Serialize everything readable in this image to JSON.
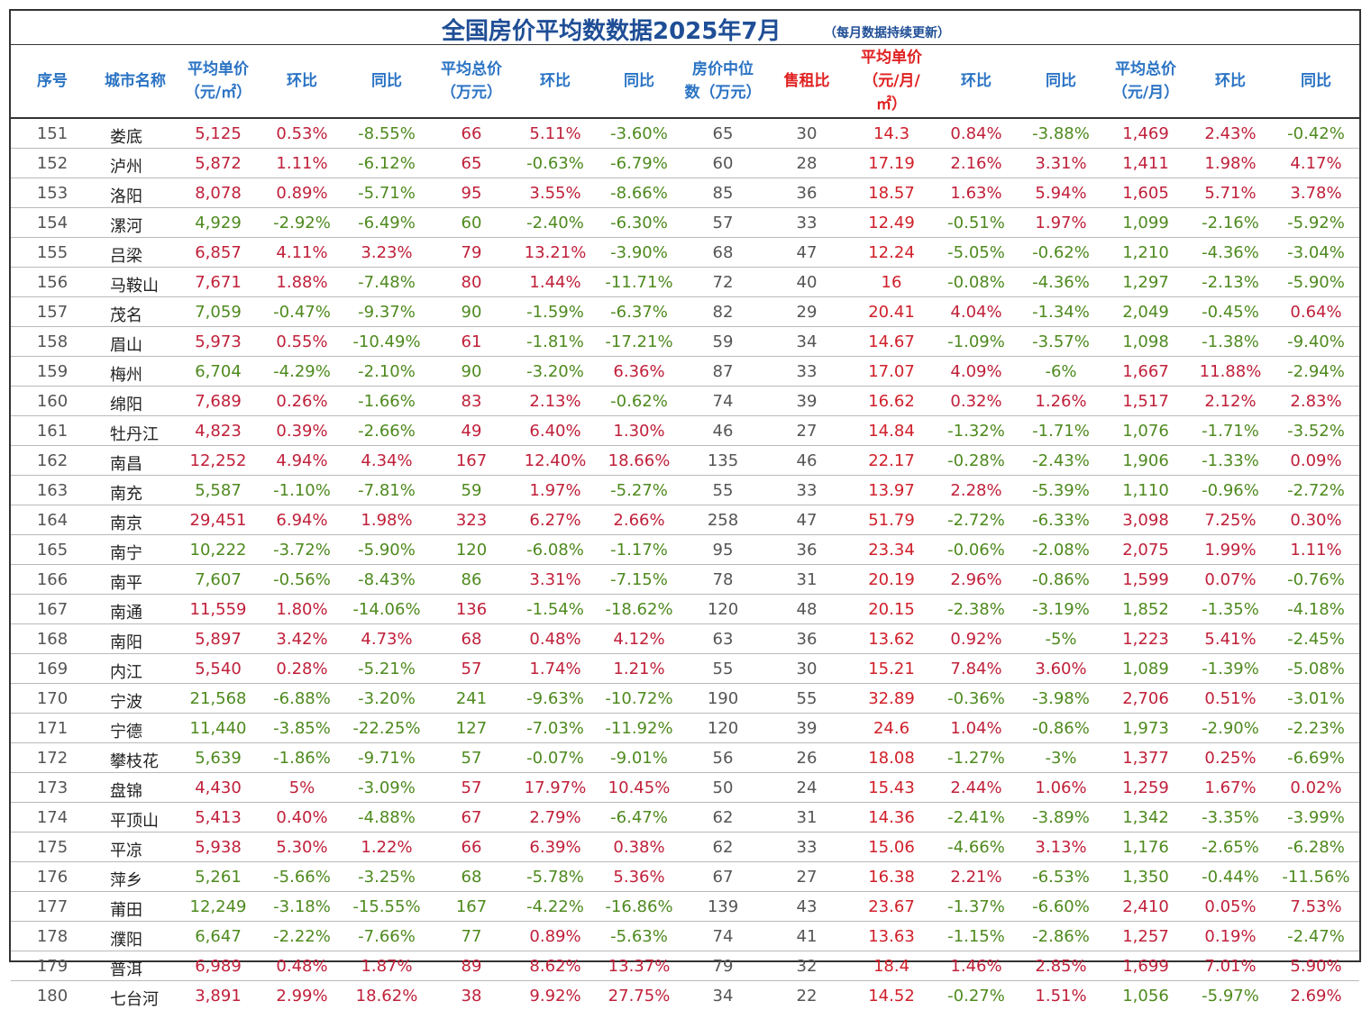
{
  "title": "全国房价平均数数据2025年7月",
  "note": "（每月数据持续更新）",
  "headers": [
    {
      "line1": "序号",
      "line2": "",
      "line3": ""
    },
    {
      "line1": "城市名称",
      "line2": "",
      "line3": ""
    },
    {
      "line1": "平均单价",
      "line2": "（元/㎡）",
      "line3": ""
    },
    {
      "line1": "环比",
      "line2": "",
      "line3": ""
    },
    {
      "line1": "同比",
      "line2": "",
      "line3": ""
    },
    {
      "line1": "平均总价",
      "line2": "（万元）",
      "line3": ""
    },
    {
      "line1": "环比",
      "line2": "",
      "line3": ""
    },
    {
      "line1": "同比",
      "line2": "",
      "line3": ""
    },
    {
      "line1": "房价中位",
      "line2": "数（万元）",
      "line3": ""
    },
    {
      "line1": "售租比",
      "line2": "",
      "line3": ""
    },
    {
      "line1": "平均单价",
      "line2": "（元/月/",
      "line3": "㎡）"
    },
    {
      "line1": "环比",
      "line2": "",
      "line3": ""
    },
    {
      "line1": "同比",
      "line2": "",
      "line3": ""
    },
    {
      "line1": "平均总价",
      "line2": "（元/月）",
      "line3": ""
    },
    {
      "line1": "环比",
      "line2": "",
      "line3": ""
    },
    {
      "line1": "同比",
      "line2": "",
      "line3": ""
    }
  ],
  "colors": {
    "header_blue": "#2a73c4",
    "header_red": "#e02020",
    "positive": "#c0203a",
    "negative": "#4e8a1e",
    "title": "#1f4e96"
  },
  "rows": [
    [
      "151",
      "娄底",
      "5,125",
      "0.53%",
      "-8.55%",
      "66",
      "5.11%",
      "-3.60%",
      "65",
      "30",
      "14.3",
      "0.84%",
      "-3.88%",
      "1,469",
      "2.43%",
      "-0.42%"
    ],
    [
      "152",
      "泸州",
      "5,872",
      "1.11%",
      "-6.12%",
      "65",
      "-0.63%",
      "-6.79%",
      "60",
      "28",
      "17.19",
      "2.16%",
      "3.31%",
      "1,411",
      "1.98%",
      "4.17%"
    ],
    [
      "153",
      "洛阳",
      "8,078",
      "0.89%",
      "-5.71%",
      "95",
      "3.55%",
      "-8.66%",
      "85",
      "36",
      "18.57",
      "1.63%",
      "5.94%",
      "1,605",
      "5.71%",
      "3.78%"
    ],
    [
      "154",
      "漯河",
      "4,929",
      "-2.92%",
      "-6.49%",
      "60",
      "-2.40%",
      "-6.30%",
      "57",
      "33",
      "12.49",
      "-0.51%",
      "1.97%",
      "1,099",
      "-2.16%",
      "-5.92%"
    ],
    [
      "155",
      "吕梁",
      "6,857",
      "4.11%",
      "3.23%",
      "79",
      "13.21%",
      "-3.90%",
      "68",
      "47",
      "12.24",
      "-5.05%",
      "-0.62%",
      "1,210",
      "-4.36%",
      "-3.04%"
    ],
    [
      "156",
      "马鞍山",
      "7,671",
      "1.88%",
      "-7.48%",
      "80",
      "1.44%",
      "-11.71%",
      "72",
      "40",
      "16",
      "-0.08%",
      "-4.36%",
      "1,297",
      "-2.13%",
      "-5.90%"
    ],
    [
      "157",
      "茂名",
      "7,059",
      "-0.47%",
      "-9.37%",
      "90",
      "-1.59%",
      "-6.37%",
      "82",
      "29",
      "20.41",
      "4.04%",
      "-1.34%",
      "2,049",
      "-0.45%",
      "0.64%"
    ],
    [
      "158",
      "眉山",
      "5,973",
      "0.55%",
      "-10.49%",
      "61",
      "-1.81%",
      "-17.21%",
      "59",
      "34",
      "14.67",
      "-1.09%",
      "-3.57%",
      "1,098",
      "-1.38%",
      "-9.40%"
    ],
    [
      "159",
      "梅州",
      "6,704",
      "-4.29%",
      "-2.10%",
      "90",
      "-3.20%",
      "6.36%",
      "87",
      "33",
      "17.07",
      "4.09%",
      "-6%",
      "1,667",
      "11.88%",
      "-2.94%"
    ],
    [
      "160",
      "绵阳",
      "7,689",
      "0.26%",
      "-1.66%",
      "83",
      "2.13%",
      "-0.62%",
      "74",
      "39",
      "16.62",
      "0.32%",
      "1.26%",
      "1,517",
      "2.12%",
      "2.83%"
    ],
    [
      "161",
      "牡丹江",
      "4,823",
      "0.39%",
      "-2.66%",
      "49",
      "6.40%",
      "1.30%",
      "46",
      "27",
      "14.84",
      "-1.32%",
      "-1.71%",
      "1,076",
      "-1.71%",
      "-3.52%"
    ],
    [
      "162",
      "南昌",
      "12,252",
      "4.94%",
      "4.34%",
      "167",
      "12.40%",
      "18.66%",
      "135",
      "46",
      "22.17",
      "-0.28%",
      "-2.43%",
      "1,906",
      "-1.33%",
      "0.09%"
    ],
    [
      "163",
      "南充",
      "5,587",
      "-1.10%",
      "-7.81%",
      "59",
      "1.97%",
      "-5.27%",
      "55",
      "33",
      "13.97",
      "2.28%",
      "-5.39%",
      "1,110",
      "-0.96%",
      "-2.72%"
    ],
    [
      "164",
      "南京",
      "29,451",
      "6.94%",
      "1.98%",
      "323",
      "6.27%",
      "2.66%",
      "258",
      "47",
      "51.79",
      "-2.72%",
      "-6.33%",
      "3,098",
      "7.25%",
      "0.30%"
    ],
    [
      "165",
      "南宁",
      "10,222",
      "-3.72%",
      "-5.90%",
      "120",
      "-6.08%",
      "-1.17%",
      "95",
      "36",
      "23.34",
      "-0.06%",
      "-2.08%",
      "2,075",
      "1.99%",
      "1.11%"
    ],
    [
      "166",
      "南平",
      "7,607",
      "-0.56%",
      "-8.43%",
      "86",
      "3.31%",
      "-7.15%",
      "78",
      "31",
      "20.19",
      "2.96%",
      "-0.86%",
      "1,599",
      "0.07%",
      "-0.76%"
    ],
    [
      "167",
      "南通",
      "11,559",
      "1.80%",
      "-14.06%",
      "136",
      "-1.54%",
      "-18.62%",
      "120",
      "48",
      "20.15",
      "-2.38%",
      "-3.19%",
      "1,852",
      "-1.35%",
      "-4.18%"
    ],
    [
      "168",
      "南阳",
      "5,897",
      "3.42%",
      "4.73%",
      "68",
      "0.48%",
      "4.12%",
      "63",
      "36",
      "13.62",
      "0.92%",
      "-5%",
      "1,223",
      "5.41%",
      "-2.45%"
    ],
    [
      "169",
      "内江",
      "5,540",
      "0.28%",
      "-5.21%",
      "57",
      "1.74%",
      "1.21%",
      "55",
      "30",
      "15.21",
      "7.84%",
      "3.60%",
      "1,089",
      "-1.39%",
      "-5.08%"
    ],
    [
      "170",
      "宁波",
      "21,568",
      "-6.88%",
      "-3.20%",
      "241",
      "-9.63%",
      "-10.72%",
      "190",
      "55",
      "32.89",
      "-0.36%",
      "-3.98%",
      "2,706",
      "0.51%",
      "-3.01%"
    ],
    [
      "171",
      "宁德",
      "11,440",
      "-3.85%",
      "-22.25%",
      "127",
      "-7.03%",
      "-11.92%",
      "120",
      "39",
      "24.6",
      "1.04%",
      "-0.86%",
      "1,973",
      "-2.90%",
      "-2.23%"
    ],
    [
      "172",
      "攀枝花",
      "5,639",
      "-1.86%",
      "-9.71%",
      "57",
      "-0.07%",
      "-9.01%",
      "56",
      "26",
      "18.08",
      "-1.27%",
      "-3%",
      "1,377",
      "0.25%",
      "-6.69%"
    ],
    [
      "173",
      "盘锦",
      "4,430",
      "5%",
      "-3.09%",
      "57",
      "17.97%",
      "10.45%",
      "50",
      "24",
      "15.43",
      "2.44%",
      "1.06%",
      "1,259",
      "1.67%",
      "0.02%"
    ],
    [
      "174",
      "平顶山",
      "5,413",
      "0.40%",
      "-4.88%",
      "67",
      "2.79%",
      "-6.47%",
      "62",
      "31",
      "14.36",
      "-2.41%",
      "-3.89%",
      "1,342",
      "-3.35%",
      "-3.99%"
    ],
    [
      "175",
      "平凉",
      "5,938",
      "5.30%",
      "1.22%",
      "66",
      "6.39%",
      "0.38%",
      "62",
      "33",
      "15.06",
      "-4.66%",
      "3.13%",
      "1,176",
      "-2.65%",
      "-6.28%"
    ],
    [
      "176",
      "萍乡",
      "5,261",
      "-5.66%",
      "-3.25%",
      "68",
      "-5.78%",
      "5.36%",
      "67",
      "27",
      "16.38",
      "2.21%",
      "-6.53%",
      "1,350",
      "-0.44%",
      "-11.56%"
    ],
    [
      "177",
      "莆田",
      "12,249",
      "-3.18%",
      "-15.55%",
      "167",
      "-4.22%",
      "-16.86%",
      "139",
      "43",
      "23.67",
      "-1.37%",
      "-6.60%",
      "2,410",
      "0.05%",
      "7.53%"
    ],
    [
      "178",
      "濮阳",
      "6,647",
      "-2.22%",
      "-7.66%",
      "77",
      "0.89%",
      "-5.63%",
      "74",
      "41",
      "13.63",
      "-1.15%",
      "-2.86%",
      "1,257",
      "0.19%",
      "-2.47%"
    ],
    [
      "179",
      "普洱",
      "6,989",
      "0.48%",
      "1.87%",
      "89",
      "8.62%",
      "13.37%",
      "79",
      "32",
      "18.4",
      "1.46%",
      "2.85%",
      "1,699",
      "7.01%",
      "5.90%"
    ],
    [
      "180",
      "七台河",
      "3,891",
      "2.99%",
      "18.62%",
      "38",
      "9.92%",
      "27.75%",
      "34",
      "22",
      "14.52",
      "-0.27%",
      "1.51%",
      "1,056",
      "-5.97%",
      "2.69%"
    ]
  ]
}
